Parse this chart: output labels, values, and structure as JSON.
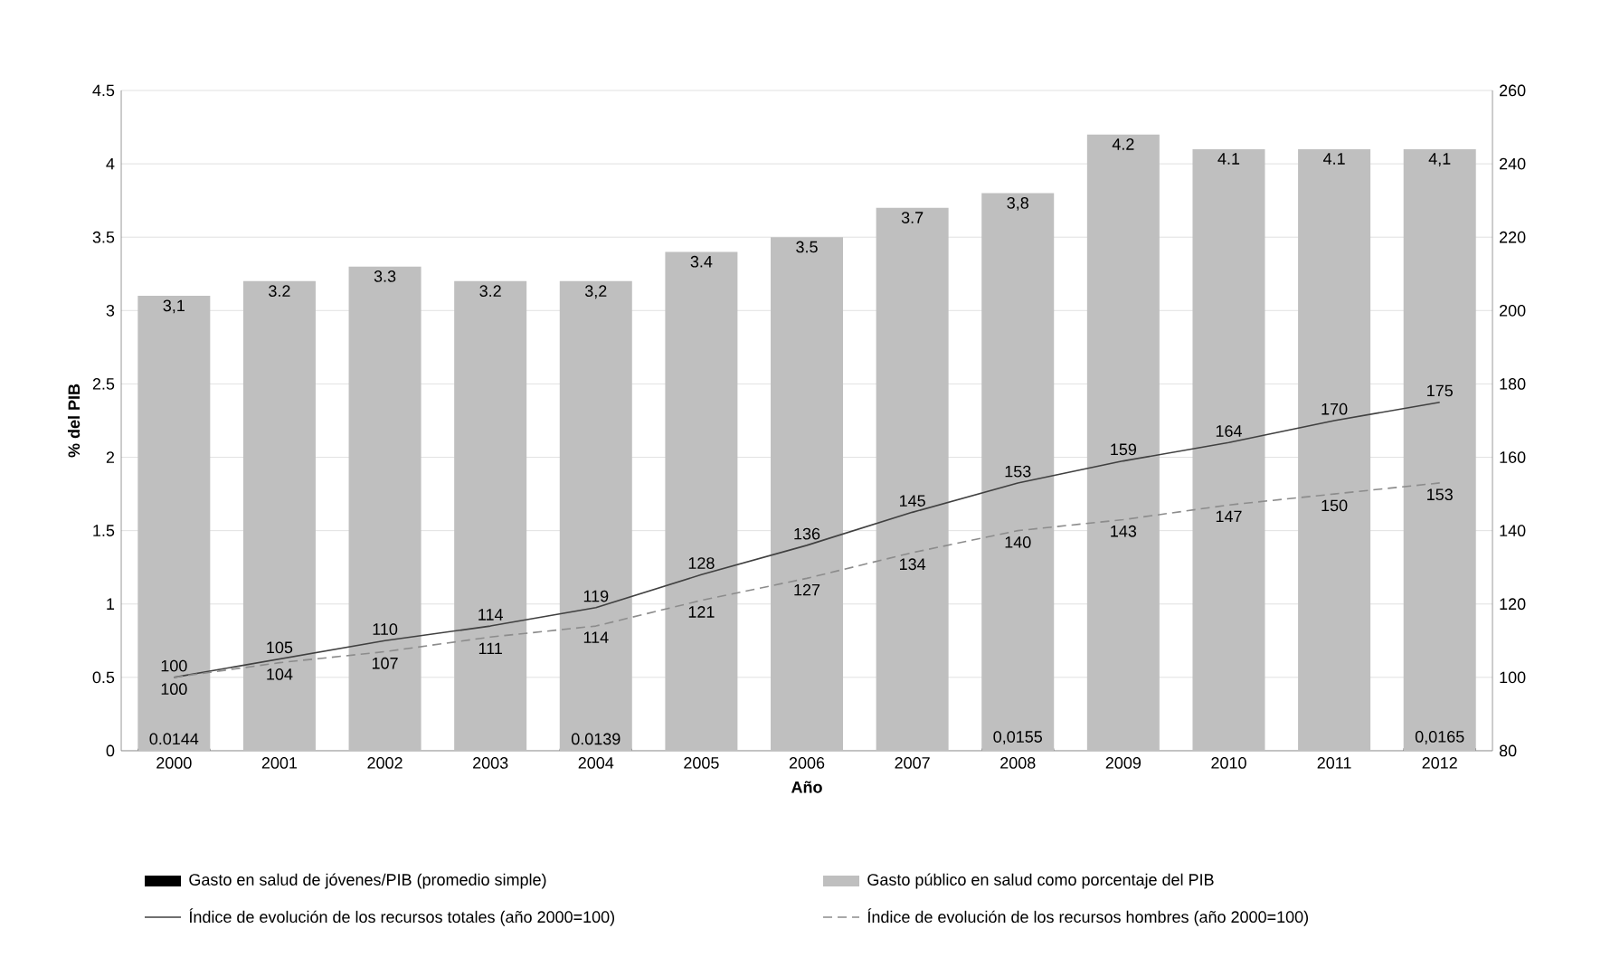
{
  "chart_data": {
    "type": "bar",
    "xlabel": "Año",
    "ylabel": "% del PIB",
    "categories": [
      "2000",
      "2001",
      "2002",
      "2003",
      "2004",
      "2005",
      "2006",
      "2007",
      "2008",
      "2009",
      "2010",
      "2011",
      "2012"
    ],
    "ylim": [
      0,
      4.5
    ],
    "yticks": [
      0,
      0.5,
      1,
      1.5,
      2,
      2.5,
      3,
      3.5,
      4,
      4.5
    ],
    "y2lim": [
      80,
      260
    ],
    "y2ticks": [
      80,
      100,
      120,
      140,
      160,
      180,
      200,
      220,
      240,
      260
    ],
    "grid": "y",
    "legend": "bottom",
    "data_labels": true,
    "series": [
      {
        "name": "Gasto en salud de jóvenes/PIB (promedio simple)",
        "color": "#000000",
        "values": [
          0.0144,
          null,
          null,
          null,
          0.0139,
          null,
          null,
          null,
          0.0155,
          null,
          null,
          null,
          0.0165
        ],
        "value_labels": [
          "0.0144",
          null,
          null,
          null,
          "0.0139",
          null,
          null,
          null,
          "0,0155",
          null,
          null,
          null,
          "0,0165"
        ]
      },
      {
        "name": "Gasto público en salud como porcentaje del PIB",
        "color": "#bfbfbf",
        "values": [
          3.1,
          3.2,
          3.3,
          3.2,
          3.2,
          3.4,
          3.5,
          3.7,
          3.8,
          4.2,
          4.1,
          4.1,
          4.1
        ],
        "value_labels": [
          "3,1",
          "3.2",
          "3.3",
          "3.2",
          "3,2",
          "3.4",
          "3.5",
          "3.7",
          "3,8",
          "4.2",
          "4.1",
          "4.1",
          "4,1"
        ]
      },
      {
        "name": "Índice de evolución de los recursos totales (año 2000=100)",
        "type": "line",
        "axis": "y2",
        "color": "#404040",
        "line_style": "solid",
        "values": [
          100,
          105,
          110,
          114,
          119,
          128,
          136,
          145,
          153,
          159,
          164,
          170,
          175
        ]
      },
      {
        "name": "Índice de evolución de los recursos hombres (año 2000=100)",
        "type": "line",
        "axis": "y2",
        "color": "#8c8c8c",
        "line_style": "dashed",
        "values": [
          100,
          104,
          107,
          111,
          114,
          121,
          127,
          134,
          140,
          143,
          147,
          150,
          153
        ]
      }
    ]
  }
}
